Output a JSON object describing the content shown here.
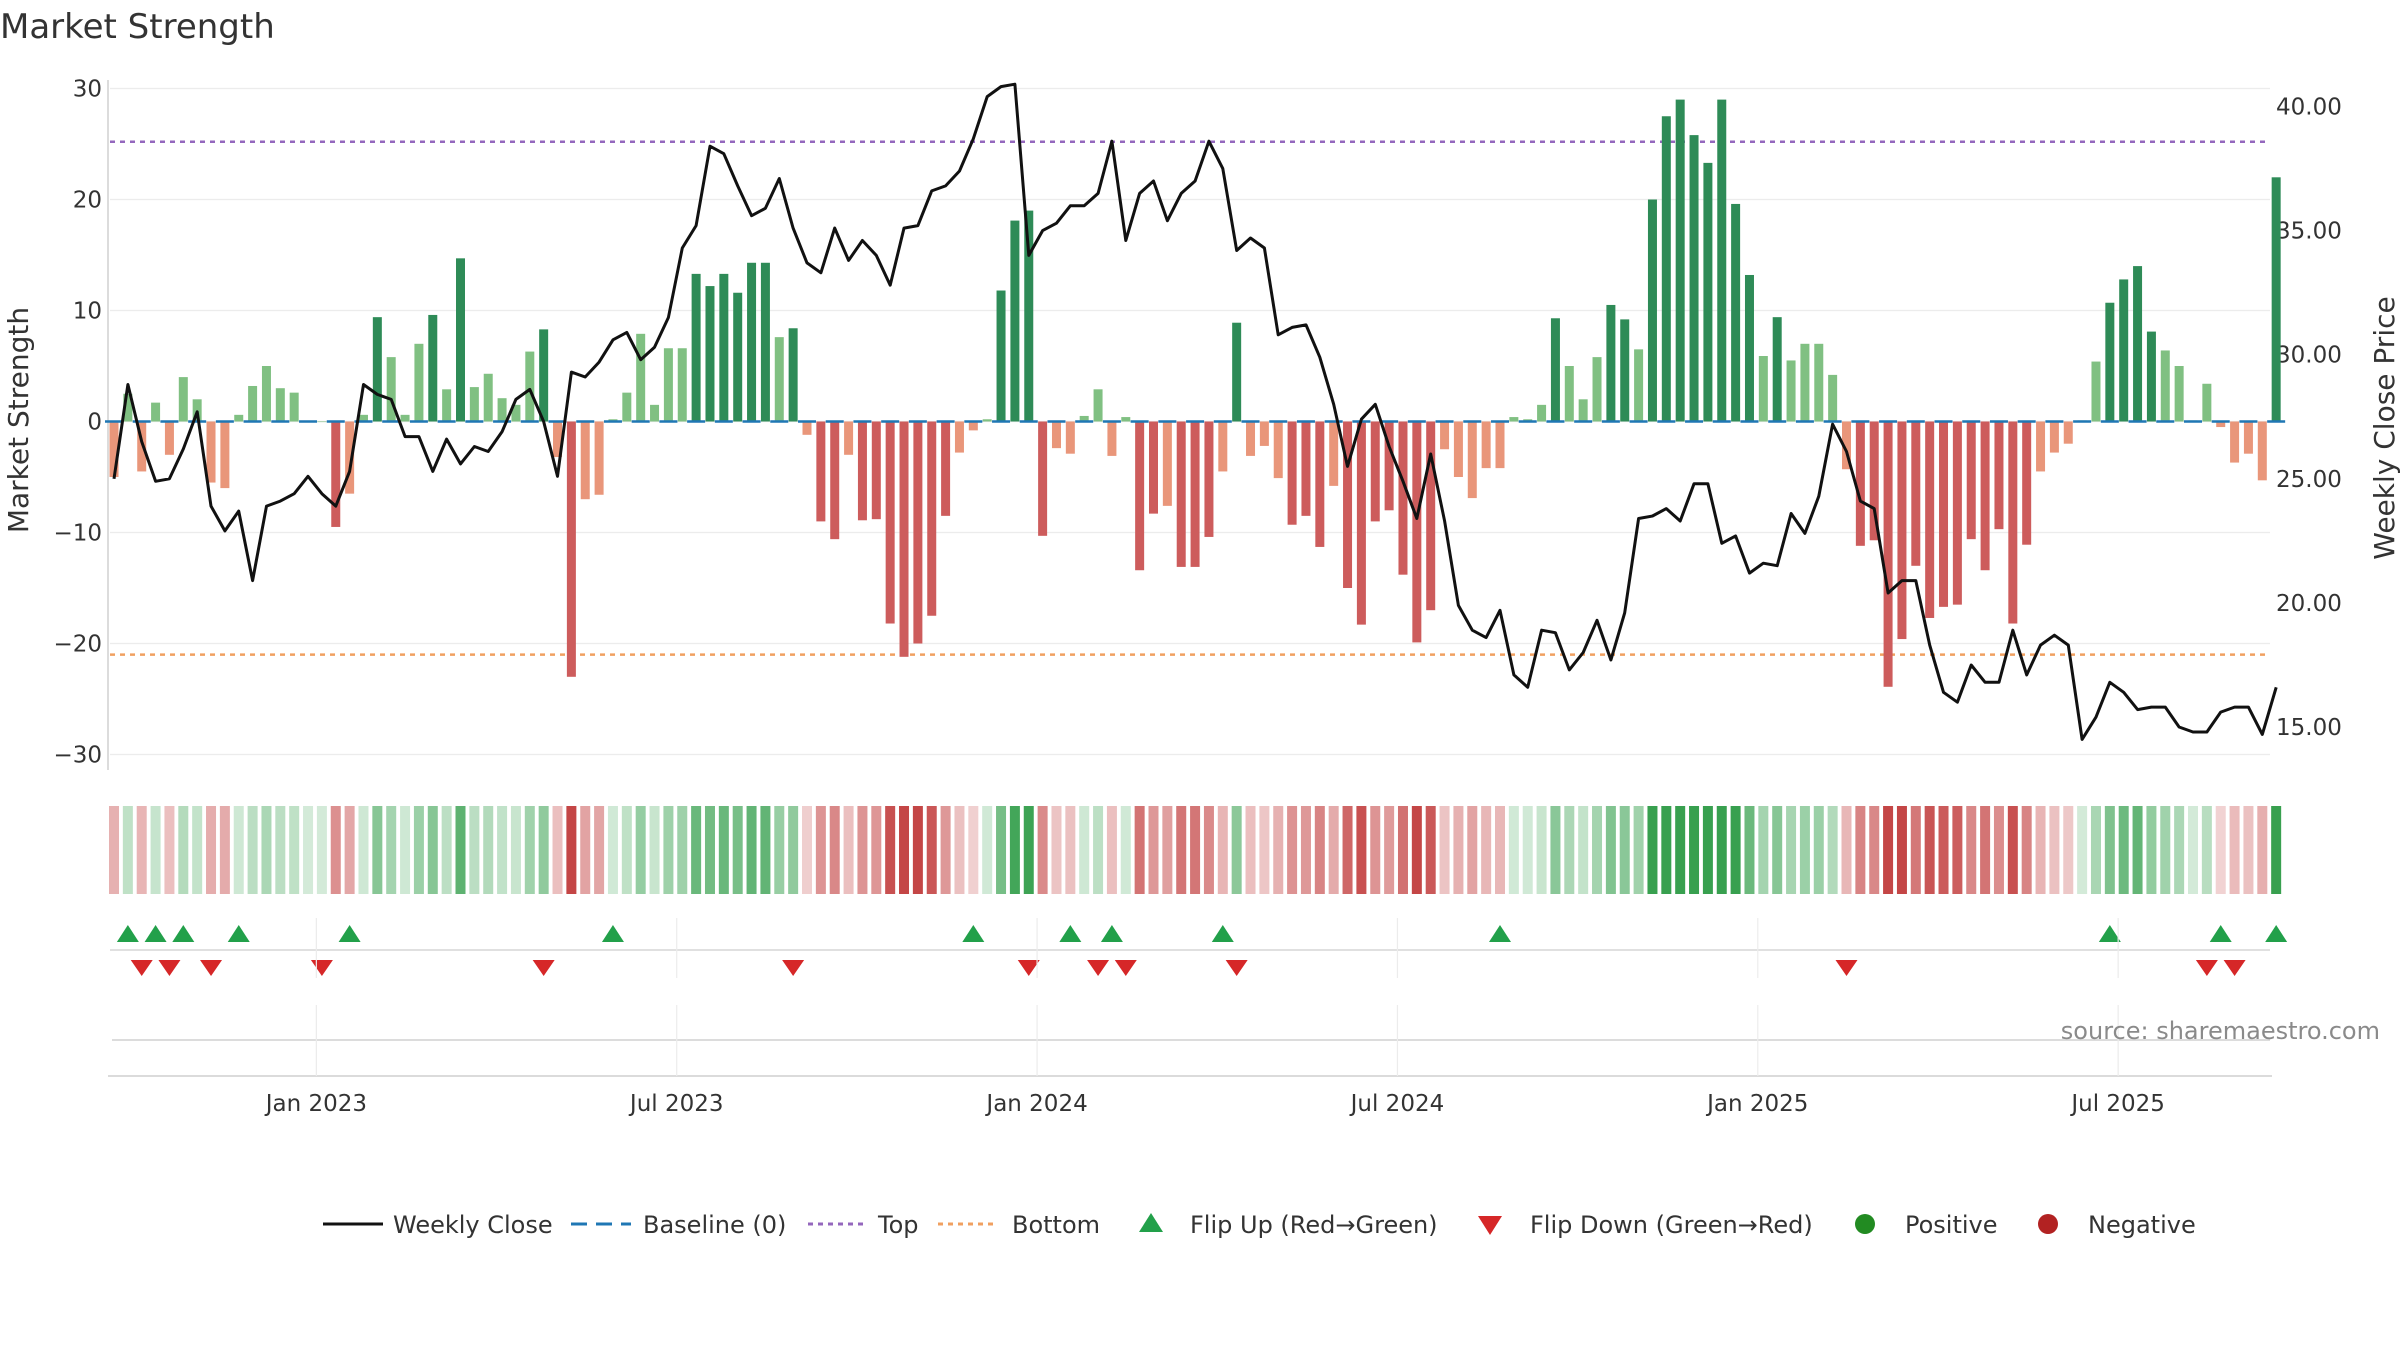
{
  "chart_data": {
    "type": "bar",
    "title": "Market Strength",
    "ylabel_left": "Market Strength",
    "ylabel_right": "Weekly Close Price",
    "ylim_left": [
      -31,
      31
    ],
    "ylim_right": [
      14.3,
      40.6
    ],
    "y_ticks_left": [
      30,
      20,
      10,
      0,
      -10,
      -20,
      -30
    ],
    "y_ticks_right": [
      40,
      35,
      30,
      25,
      20,
      15
    ],
    "x_tick_labels": [
      "Jan 2023",
      "Jul 2023",
      "Jan 2024",
      "Jul 2024",
      "Jan 2025",
      "Jul 2025"
    ],
    "x_tick_weeks": [
      14.6,
      40.6,
      66.6,
      92.6,
      118.6,
      144.6
    ],
    "top_line": 25.2,
    "bottom_line": -21,
    "baseline": 0,
    "n_weeks": 157,
    "strength": [
      -5,
      2.5,
      -4.5,
      1.7,
      -3,
      4,
      2,
      -5.5,
      -6,
      0.6,
      3.2,
      5,
      3,
      2.6,
      0,
      0,
      -9.5,
      -6.5,
      0.6,
      9.4,
      5.8,
      0.6,
      7,
      9.6,
      2.9,
      14.7,
      3.1,
      4.3,
      2.1,
      1.5,
      6.3,
      8.3,
      -3.2,
      -23,
      -7,
      -6.6,
      0.2,
      2.6,
      7.9,
      1.5,
      6.6,
      6.6,
      13.3,
      12.2,
      13.3,
      11.6,
      14.3,
      14.3,
      7.6,
      8.4,
      -1.2,
      -9,
      -10.6,
      -3,
      -8.9,
      -8.8,
      -18.2,
      -21.2,
      -20,
      -17.5,
      -8.5,
      -2.8,
      -0.8,
      0.2,
      11.8,
      18.1,
      19,
      -10.3,
      -2.4,
      -2.9,
      0.5,
      2.9,
      -3.1,
      0.4,
      -13.4,
      -8.3,
      -7.6,
      -13.1,
      -13.1,
      -10.4,
      -4.5,
      8.9,
      -3.1,
      -2.2,
      -5.1,
      -9.3,
      -8.5,
      -11.3,
      -5.8,
      -15,
      -18.3,
      -9,
      -8,
      -13.8,
      -19.9,
      -17,
      -2.5,
      -5,
      -6.9,
      -4.2,
      -4.2,
      0.4,
      0.2,
      1.5,
      9.3,
      5,
      2,
      5.8,
      10.5,
      9.2,
      6.5,
      20,
      27.5,
      29,
      25.8,
      23.3,
      29,
      19.6,
      13.2,
      5.9,
      9.4,
      5.5,
      7,
      7,
      4.2,
      -4.3,
      -11.2,
      -10.7,
      -23.9,
      -19.6,
      -13,
      -17.7,
      -16.7,
      -16.5,
      -10.6,
      -13.4,
      -9.7,
      -18.2,
      -11.1,
      -4.5,
      -2.8,
      -2,
      0.1,
      5.4,
      10.7,
      12.8,
      14,
      8.1,
      6.4,
      5,
      0.1,
      3.4,
      -0.5,
      -3.7,
      -2.9,
      -5.3,
      22
    ],
    "weekly_close": [
      25,
      28.8,
      26.5,
      24.9,
      25,
      26.2,
      27.7,
      23.9,
      22.9,
      23.7,
      20.9,
      23.9,
      24.1,
      24.4,
      25.1,
      24.4,
      23.9,
      25.3,
      28.8,
      28.4,
      28.2,
      26.7,
      26.7,
      25.3,
      26.6,
      25.6,
      26.3,
      26.1,
      26.9,
      28.2,
      28.6,
      27.3,
      25.1,
      29.3,
      29.1,
      29.7,
      30.6,
      30.9,
      29.8,
      30.3,
      31.5,
      34.3,
      35.2,
      38.4,
      38.1,
      36.8,
      35.6,
      35.9,
      37.1,
      35.1,
      33.7,
      33.3,
      35.1,
      33.8,
      34.6,
      34,
      32.8,
      35.1,
      35.2,
      36.6,
      36.8,
      37.4,
      38.7,
      40.4,
      40.8,
      40.9,
      34,
      35,
      35.3,
      36,
      36,
      36.5,
      38.6,
      34.6,
      36.5,
      37,
      35.4,
      36.5,
      37,
      38.6,
      37.5,
      34.2,
      34.7,
      34.3,
      30.8,
      31.1,
      31.2,
      29.9,
      28,
      25.5,
      27.4,
      28,
      26.3,
      24.9,
      23.4,
      26,
      23.3,
      19.9,
      18.9,
      18.6,
      19.7,
      17.1,
      16.6,
      18.9,
      18.8,
      17.3,
      18,
      19.3,
      17.7,
      19.6,
      23.4,
      23.5,
      23.8,
      23.3,
      24.8,
      24.8,
      22.4,
      22.7,
      21.2,
      21.6,
      21.5,
      23.6,
      22.8,
      24.3,
      27.2,
      26.1,
      24.1,
      23.8,
      20.4,
      20.9,
      20.9,
      18.3,
      16.4,
      16,
      17.5,
      16.8,
      16.8,
      18.9,
      17.1,
      18.3,
      18.7,
      18.3,
      14.5,
      15.4,
      16.8,
      16.4,
      15.7,
      15.8,
      15.8,
      15,
      14.8,
      14.8,
      15.6,
      15.8,
      15.8,
      14.7,
      16.6
    ],
    "flip_up_weeks": [
      1,
      3,
      5,
      9,
      17,
      36,
      62,
      69,
      72,
      80,
      100,
      144,
      152,
      156
    ],
    "flip_down_weeks": [
      2,
      4,
      7,
      15,
      31,
      49,
      66,
      71,
      73,
      81,
      125,
      151,
      153
    ],
    "source_note": "source: sharemaestro.com",
    "legend": [
      "Weekly Close",
      "Baseline (0)",
      "Top",
      "Bottom",
      "Flip Up (Red→Green)",
      "Flip Down (Green→Red)",
      "Positive",
      "Negative"
    ],
    "colors": {
      "bar_pos_strong": "#2e8b57",
      "bar_pos_weak": "#80c082",
      "bar_neg_strong": "#cd5c5c",
      "bar_neg_weak": "#e9967a",
      "close_line": "#111111",
      "baseline": "#1f77b4",
      "top": "#9467bd",
      "bottom": "#f0a060",
      "flip_up": "#22a04a",
      "flip_down": "#d62728",
      "positive": "#228b22",
      "negative": "#b22222"
    }
  }
}
